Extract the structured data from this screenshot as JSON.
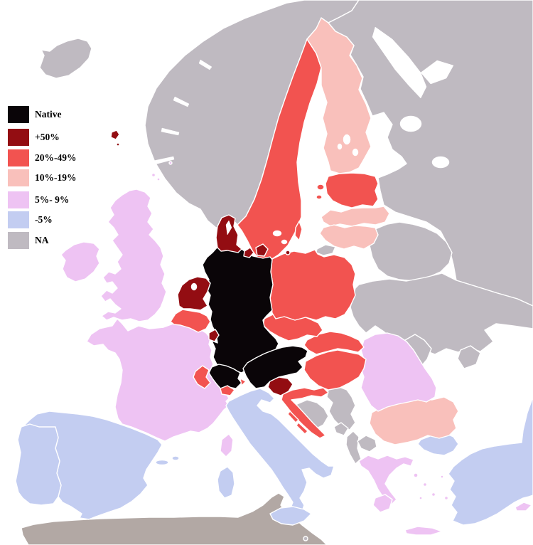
{
  "legend": [
    {
      "id": "native",
      "label": "Native",
      "color": "#0a0508"
    },
    {
      "id": "gte50",
      "label": "+50%",
      "color": "#930d12"
    },
    {
      "id": "r20_49",
      "label": "20%-49%",
      "color": "#f25350"
    },
    {
      "id": "r10_19",
      "label": "10%-19%",
      "color": "#f9c0bb"
    },
    {
      "id": "r5_9",
      "label": "5%- 9%",
      "color": "#eec3f3"
    },
    {
      "id": "lt5",
      "label": "-5%",
      "color": "#c3cdf1"
    },
    {
      "id": "na",
      "label": "NA",
      "color": "#bfbac1"
    }
  ],
  "colors": {
    "sea": "#ffffff",
    "border": "#ffffff",
    "africa": "#b2a8a4"
  },
  "regions": [
    {
      "id": "north-africa",
      "category": "africa"
    },
    {
      "id": "iceland",
      "category": "na"
    },
    {
      "id": "norway",
      "category": "na"
    },
    {
      "id": "russia",
      "category": "na"
    },
    {
      "id": "sweden",
      "category": "r20_49"
    },
    {
      "id": "finland",
      "category": "r10_19"
    },
    {
      "id": "belarus",
      "category": "na"
    },
    {
      "id": "ukraine",
      "category": "na"
    },
    {
      "id": "moldova",
      "category": "na"
    },
    {
      "id": "crimea",
      "category": "na"
    },
    {
      "id": "estonia",
      "category": "r20_49"
    },
    {
      "id": "latvia",
      "category": "r10_19"
    },
    {
      "id": "lithuania",
      "category": "r10_19"
    },
    {
      "id": "kaliningrad",
      "category": "na"
    },
    {
      "id": "france",
      "category": "r5_9"
    },
    {
      "id": "spain",
      "category": "lt5"
    },
    {
      "id": "portugal",
      "category": "lt5"
    },
    {
      "id": "united-kingdom",
      "category": "r5_9"
    },
    {
      "id": "ireland",
      "category": "r5_9"
    },
    {
      "id": "italy",
      "category": "lt5"
    },
    {
      "id": "turkey",
      "category": "lt5"
    },
    {
      "id": "greece",
      "category": "r5_9"
    },
    {
      "id": "bulgaria",
      "category": "r10_19"
    },
    {
      "id": "romania",
      "category": "r5_9"
    },
    {
      "id": "serbia",
      "category": "na"
    },
    {
      "id": "bosnia",
      "category": "na"
    },
    {
      "id": "montenegro",
      "category": "na"
    },
    {
      "id": "albania",
      "category": "na"
    },
    {
      "id": "macedonia",
      "category": "na"
    },
    {
      "id": "croatia",
      "category": "r20_49"
    },
    {
      "id": "slovenia",
      "category": "gte50"
    },
    {
      "id": "hungary",
      "category": "r20_49"
    },
    {
      "id": "slovakia",
      "category": "r20_49"
    },
    {
      "id": "czechia",
      "category": "r20_49"
    },
    {
      "id": "poland",
      "category": "r20_49"
    },
    {
      "id": "germany",
      "category": "native"
    },
    {
      "id": "austria",
      "category": "native"
    },
    {
      "id": "switzerland",
      "category": "native"
    },
    {
      "id": "switzerland-west",
      "category": "r20_49"
    },
    {
      "id": "switzerland-south",
      "category": "r20_49"
    },
    {
      "id": "switzerland-east",
      "category": "r20_49"
    },
    {
      "id": "denmark",
      "category": "gte50"
    },
    {
      "id": "netherlands",
      "category": "gte50"
    },
    {
      "id": "belgium",
      "category": "r20_49"
    },
    {
      "id": "luxembourg",
      "category": "gte50"
    },
    {
      "id": "gotland",
      "category": "r20_49"
    },
    {
      "id": "balearic-islands",
      "category": "lt5"
    },
    {
      "id": "corsica",
      "category": "r5_9"
    },
    {
      "id": "sardinia",
      "category": "lt5"
    },
    {
      "id": "sicily",
      "category": "lt5"
    },
    {
      "id": "malta",
      "category": "na"
    },
    {
      "id": "cyprus",
      "category": "r5_9"
    },
    {
      "id": "faroe-islands",
      "category": "gte50"
    },
    {
      "id": "northern-isles",
      "category": "r5_9"
    }
  ]
}
